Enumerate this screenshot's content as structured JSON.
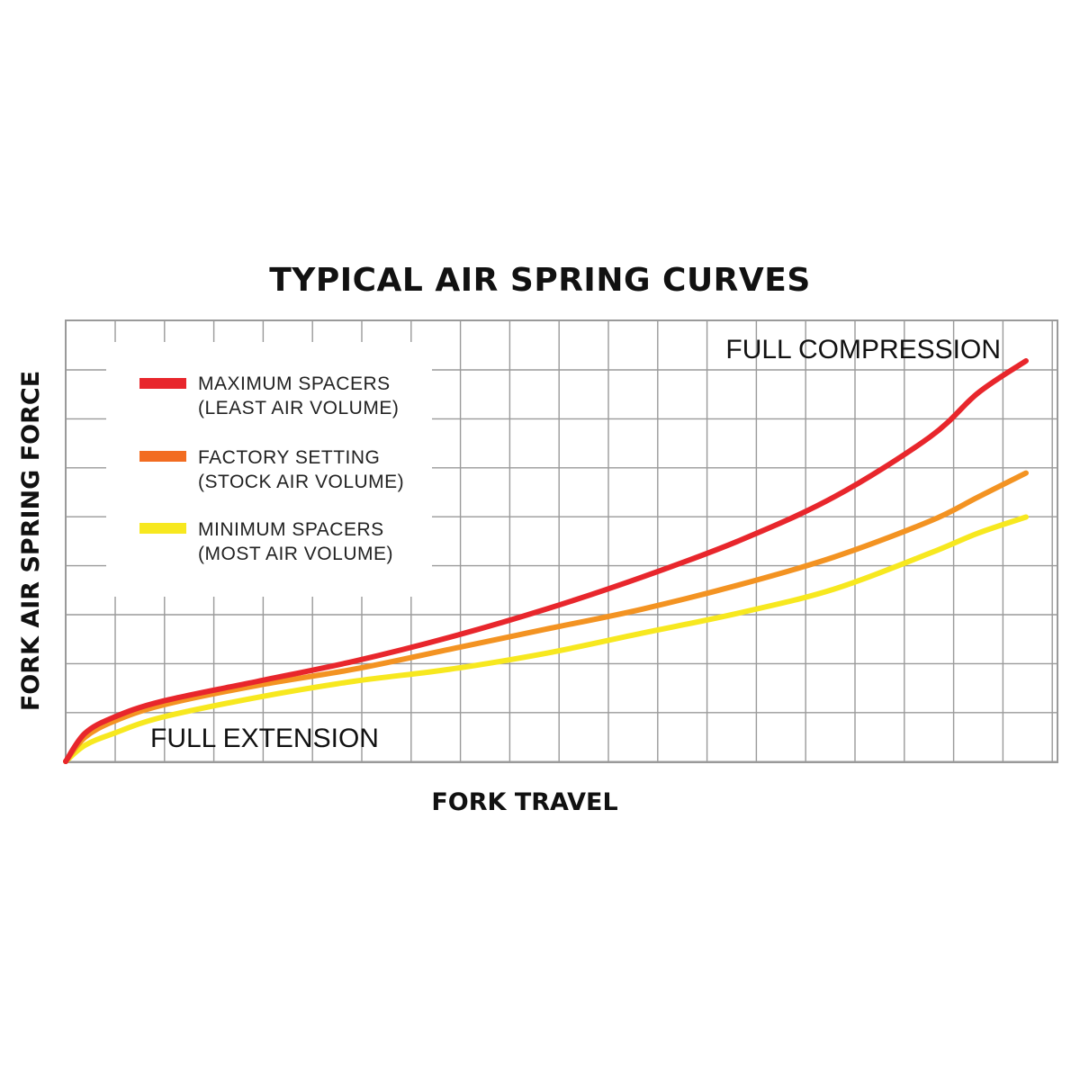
{
  "chart_data": {
    "type": "line",
    "title": "TYPICAL AIR SPRING CURVES",
    "xlabel": "FORK TRAVEL",
    "ylabel": "FORK AIR SPRING FORCE",
    "grid": true,
    "x_ticks_labeled": false,
    "y_ticks_labeled": false,
    "legend_position": "top-left",
    "annotations": [
      {
        "id": "full-compression",
        "text": "FULL COMPRESSION"
      },
      {
        "id": "full-extension",
        "text": "FULL EXTENSION"
      }
    ],
    "x": [
      0,
      0.02,
      0.05,
      0.1,
      0.2,
      0.3,
      0.4,
      0.5,
      0.6,
      0.7,
      0.8,
      0.9,
      0.95,
      1.0
    ],
    "series": [
      {
        "name": "MAXIMUM SPACERS",
        "sublabel": "(LEAST AIR VOLUME)",
        "color": "#e8262c",
        "values": [
          0,
          0.07,
          0.11,
          0.15,
          0.2,
          0.25,
          0.31,
          0.38,
          0.46,
          0.55,
          0.66,
          0.81,
          0.92,
          1.0
        ]
      },
      {
        "name": "FACTORY SETTING",
        "sublabel": "(STOCK AIR VOLUME)",
        "color": "#f39322",
        "values": [
          0,
          0.06,
          0.1,
          0.14,
          0.19,
          0.23,
          0.28,
          0.33,
          0.38,
          0.44,
          0.51,
          0.6,
          0.66,
          0.72
        ]
      },
      {
        "name": "MINIMUM SPACERS",
        "sublabel": "(MOST AIR VOLUME)",
        "color": "#f7e81f",
        "values": [
          0,
          0.04,
          0.07,
          0.11,
          0.16,
          0.2,
          0.23,
          0.27,
          0.32,
          0.37,
          0.43,
          0.52,
          0.57,
          0.61
        ]
      }
    ],
    "legend_swatch_colors": [
      "#e8262c",
      "#f26c21",
      "#f7e81f"
    ]
  }
}
